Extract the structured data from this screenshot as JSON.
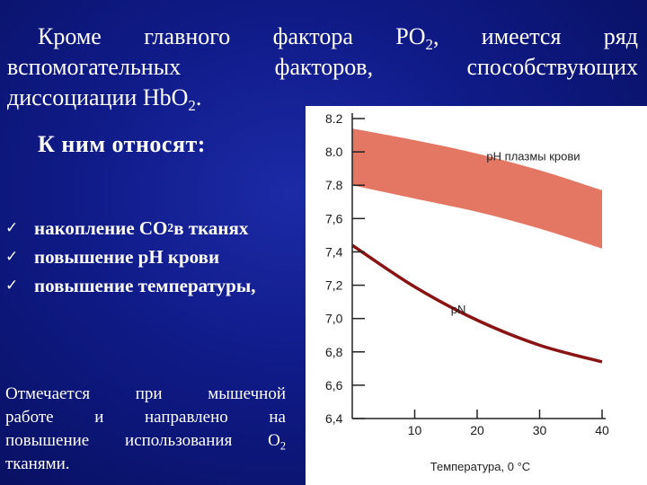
{
  "slide": {
    "intro": {
      "line1_a": "Кроме главного фактора PO",
      "line1_sub": "2",
      "line1_b": ", имеется ряд",
      "line2": "вспомогательных факторов, способствующих",
      "line3_a": "диссоциации HbO",
      "line3_sub": "2",
      "line3_b": "."
    },
    "lead": "К ним относят:",
    "factors": [
      {
        "a": "накопление CO",
        "sub": "2",
        "b": " в тканях"
      },
      {
        "a": "повышение pH крови",
        "sub": "",
        "b": ""
      },
      {
        "a": "повышение температуры,",
        "sub": "",
        "b": ""
      }
    ],
    "check_icon": "checkmark-icon",
    "note": {
      "line1": "Отмечается при мышечной",
      "line2": "работе и направлено на",
      "line3_a": "повышение использования O",
      "line3_sub": "2",
      "line4": "тканями."
    }
  },
  "chart_data": {
    "type": "area",
    "xlabel": "Температура, 0 °С",
    "ylabel": "",
    "xlim": [
      0,
      40
    ],
    "ylim": [
      6.4,
      8.2
    ],
    "x_ticks": [
      10,
      20,
      30,
      40
    ],
    "y_ticks": [
      8.2,
      8.0,
      7.8,
      7.6,
      7.4,
      7.2,
      7.0,
      6.8,
      6.6,
      6.4
    ],
    "y_tick_labels": [
      "8.2",
      "8.0",
      "7.8",
      "7,6",
      "7,4",
      "7,2",
      "7,0",
      "6,8",
      "6,6",
      "6,4"
    ],
    "series": [
      {
        "name": "pH плазмы крови",
        "kind": "band",
        "color": "#e26a57",
        "x": [
          0,
          10,
          20,
          30,
          40
        ],
        "upper": [
          8.14,
          8.07,
          7.99,
          7.89,
          7.77
        ],
        "lower": [
          7.8,
          7.72,
          7.64,
          7.54,
          7.42
        ]
      },
      {
        "name": "pN",
        "kind": "line",
        "color": "#8a1414",
        "x": [
          0,
          10,
          20,
          30,
          40
        ],
        "y": [
          7.44,
          7.19,
          6.99,
          6.84,
          6.74
        ]
      }
    ],
    "grid": false
  }
}
